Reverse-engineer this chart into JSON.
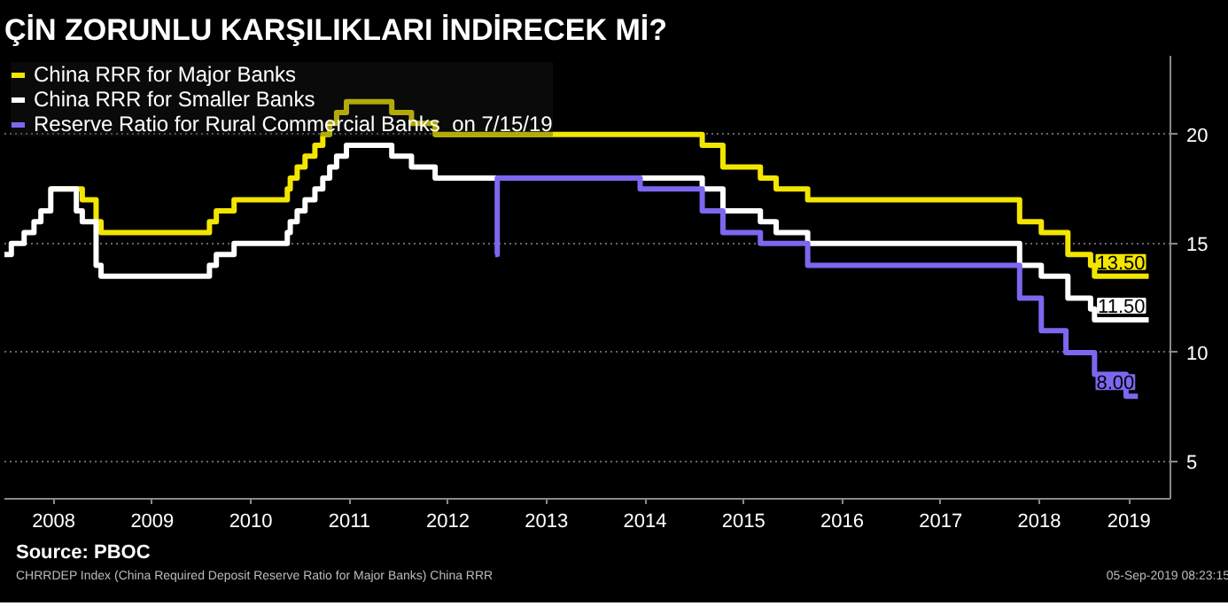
{
  "chart_data": {
    "type": "step",
    "title": "ÇİN ZORUNLU KARŞILIKLARI İNDİRECEK Mİ?",
    "annotations": [
      "Source: PBOC",
      "CHRRDEP Index (China Required Deposit Reserve Ratio for Major Banks) China RRR",
      "05-Sep-2019 08:23:15"
    ],
    "xlim": [
      2008.0,
      2019.83
    ],
    "ylim": [
      3.3,
      23.6
    ],
    "xticks": [
      {
        "value": 2008.5,
        "label": "2008"
      },
      {
        "value": 2009.5,
        "label": "2009"
      },
      {
        "value": 2010.5,
        "label": "2010"
      },
      {
        "value": 2011.5,
        "label": "2011"
      },
      {
        "value": 2012.5,
        "label": "2012"
      },
      {
        "value": 2013.5,
        "label": "2013"
      },
      {
        "value": 2014.5,
        "label": "2014"
      },
      {
        "value": 2015.5,
        "label": "2015"
      },
      {
        "value": 2016.5,
        "label": "2016"
      },
      {
        "value": 2017.5,
        "label": "2017"
      },
      {
        "value": 2018.5,
        "label": "2018"
      },
      {
        "value": 2019.41,
        "label": "2019"
      }
    ],
    "yticks": [
      5,
      10,
      15,
      20
    ],
    "grid": "y",
    "legend": "top left",
    "line_style": "solid",
    "series": [
      {
        "name": "China RRR for Major Banks",
        "color": "#f2e600",
        "x": [
          2008.47,
          2008.79,
          2008.93,
          2008.98,
          2010.08,
          2010.15,
          2010.33,
          2010.87,
          2010.9,
          2010.97,
          2011.05,
          2011.15,
          2011.23,
          2011.3,
          2011.37,
          2011.47,
          2011.93,
          2012.13,
          2012.37,
          2015.08,
          2015.29,
          2015.67,
          2015.83,
          2016.15,
          2018.3,
          2018.52,
          2018.79,
          2019.02,
          2019.06,
          2019.61
        ],
        "values": [
          17.5,
          17,
          16,
          15.5,
          16,
          16.5,
          17,
          17.5,
          18,
          18.5,
          19,
          19.5,
          20,
          20.5,
          21,
          21.5,
          21,
          20.5,
          20,
          19.5,
          18.5,
          18,
          17.5,
          17,
          16,
          15.5,
          14.5,
          14,
          13.5,
          13.5
        ],
        "value_labels": [
          null,
          null,
          null,
          null,
          null,
          null,
          null,
          null,
          null,
          null,
          null,
          null,
          null,
          null,
          null,
          null,
          null,
          null,
          null,
          null,
          null,
          null,
          null,
          null,
          null,
          null,
          null,
          null,
          null,
          "13.50"
        ]
      },
      {
        "name": "China RRR for Smaller Banks",
        "color": "#ffffff",
        "x": [
          2008.0,
          2008.07,
          2008.2,
          2008.3,
          2008.37,
          2008.47,
          2008.73,
          2008.79,
          2008.93,
          2008.98,
          2010.08,
          2010.15,
          2010.33,
          2010.87,
          2010.9,
          2010.97,
          2011.05,
          2011.15,
          2011.23,
          2011.3,
          2011.37,
          2011.47,
          2011.93,
          2012.13,
          2012.37,
          2015.08,
          2015.29,
          2015.67,
          2015.83,
          2016.15,
          2018.3,
          2018.52,
          2018.79,
          2019.02,
          2019.06,
          2019.61
        ],
        "values": [
          14.5,
          15,
          15.5,
          16,
          16.5,
          17.5,
          16.5,
          16,
          14,
          13.5,
          14,
          14.5,
          15,
          15.5,
          16,
          16.5,
          17,
          17.5,
          18,
          18.5,
          19,
          19.5,
          19,
          18.5,
          18,
          17.5,
          16.5,
          16,
          15.5,
          15,
          14,
          13.5,
          12.5,
          12,
          11.5,
          11.5
        ],
        "value_labels": [
          null,
          null,
          null,
          null,
          null,
          null,
          null,
          null,
          null,
          null,
          null,
          null,
          null,
          null,
          null,
          null,
          null,
          null,
          null,
          null,
          null,
          null,
          null,
          null,
          null,
          null,
          null,
          null,
          null,
          null,
          null,
          null,
          null,
          null,
          null,
          "11.50"
        ]
      },
      {
        "name": "Reserve Ratio for Rural Commercial Banks  on 7/15/19",
        "color": "#7b68ee",
        "x": [
          2012.98,
          2013.0,
          2014.45,
          2015.08,
          2015.29,
          2015.67,
          2016.15,
          2018.3,
          2018.52,
          2018.77,
          2019.06,
          2019.38,
          2019.45,
          2019.5
        ],
        "values": [
          14.5,
          18,
          17.5,
          16.5,
          15.5,
          15,
          14,
          12.5,
          11,
          10,
          9,
          8,
          8,
          8
        ],
        "value_labels": [
          null,
          null,
          null,
          null,
          null,
          null,
          null,
          null,
          null,
          null,
          null,
          null,
          null,
          "8.00"
        ]
      }
    ]
  }
}
